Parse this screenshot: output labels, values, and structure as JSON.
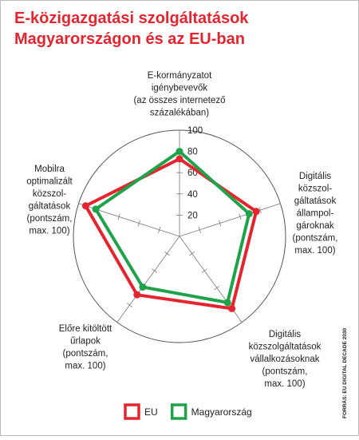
{
  "chart_data": {
    "type": "radar",
    "title_lines": [
      "E-közigazgatási szolgáltatások",
      "Magyarországon és az EU-ban"
    ],
    "categories": [
      "E-kormányzatot\nigénybevevők\n(az összes internetező\nszázalékában)",
      "Digitális\nközszol-\ngáltatások\nállampol-\ngároknak\n(pontszám,\nmax. 100)",
      "Digitális\nközszolgáltatások\nvállalkozásoknak\n(pontszám,\nmax. 100)",
      "Előre kitöltött\nűrlapok\n(pontszám,\nmax. 100)",
      "Mobilra\noptimalizált\nközszol-\ngáltatások\n(pontszám,\nmax. 100)"
    ],
    "series": [
      {
        "name": "EU",
        "color": "#e4252f",
        "values": [
          73,
          76,
          84,
          68,
          93
        ]
      },
      {
        "name": "Magyarország",
        "color": "#1fa34a",
        "values": [
          80,
          69,
          77,
          59,
          83
        ]
      }
    ],
    "rlim": [
      0,
      100
    ],
    "rticks": [
      20,
      40,
      60,
      80,
      100
    ],
    "source": "FORRÁS: EU DIGITAL DECADE 2030"
  }
}
